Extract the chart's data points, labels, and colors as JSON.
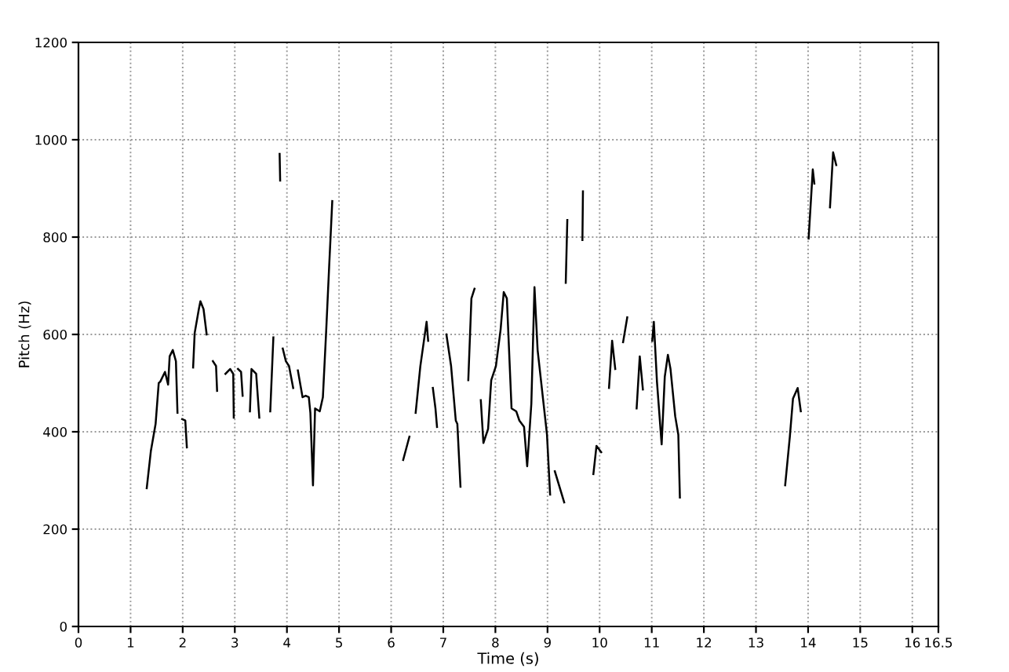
{
  "chart_data": {
    "type": "line",
    "xlabel": "Time (s)",
    "ylabel": "Pitch (Hz)",
    "xlim": [
      0,
      16.5
    ],
    "ylim": [
      0,
      1200
    ],
    "xticks": [
      0,
      1,
      2,
      3,
      4,
      5,
      6,
      7,
      8,
      9,
      10,
      11,
      12,
      13,
      14,
      15,
      16,
      16.5
    ],
    "yticks": [
      0,
      200,
      400,
      600,
      800,
      1000,
      1200
    ],
    "grid": true,
    "marker": "none",
    "line_style": "solid",
    "series": [
      {
        "color": "#000000",
        "x": [
          1.31,
          1.39,
          1.48,
          1.54,
          1.57,
          1.66,
          1.72,
          1.75,
          1.81,
          1.87,
          1.9,
          1.95,
          1.99,
          2.05,
          2.08,
          2.14,
          2.2,
          2.23,
          2.31,
          2.34,
          2.4,
          2.46,
          2.52,
          2.58,
          2.64,
          2.66,
          2.74,
          2.82,
          2.91,
          2.97,
          2.98,
          3.02,
          3.06,
          3.12,
          3.15,
          3.22,
          3.29,
          3.32,
          3.41,
          3.47,
          3.58,
          3.68,
          3.74,
          3.8,
          3.86,
          3.87,
          3.9,
          3.92,
          3.98,
          4.04,
          4.12,
          4.16,
          4.21,
          4.3,
          4.36,
          4.42,
          4.45,
          4.5,
          4.54,
          4.63,
          4.69,
          4.75,
          4.81,
          4.87,
          5.5,
          6.23,
          6.35,
          6.41,
          6.47,
          6.56,
          6.68,
          6.71,
          6.76,
          6.8,
          6.85,
          6.88,
          6.97,
          7.06,
          7.15,
          7.24,
          7.27,
          7.33,
          7.4,
          7.48,
          7.54,
          7.6,
          7.66,
          7.72,
          7.77,
          7.86,
          7.92,
          8.01,
          8.1,
          8.16,
          8.22,
          8.31,
          8.4,
          8.46,
          8.55,
          8.61,
          8.69,
          8.75,
          8.81,
          8.99,
          9.05,
          9.1,
          9.14,
          9.32,
          9.33,
          9.35,
          9.38,
          9.5,
          9.67,
          9.68,
          9.8,
          9.88,
          9.94,
          10.03,
          10.1,
          10.18,
          10.24,
          10.3,
          10.4,
          10.45,
          10.53,
          10.6,
          10.71,
          10.77,
          10.83,
          10.9,
          11.01,
          11.04,
          11.1,
          11.19,
          11.25,
          11.31,
          11.36,
          11.45,
          11.51,
          11.54,
          12.5,
          13.56,
          13.65,
          13.71,
          13.8,
          13.86,
          13.95,
          14.01,
          14.09,
          14.12,
          14.3,
          14.42,
          14.48,
          14.54
        ],
        "values": [
          284,
          361,
          416,
          500,
          503,
          523,
          497,
          555,
          568,
          545,
          439,
          null,
          426,
          423,
          368,
          null,
          532,
          603,
          652,
          668,
          652,
          600,
          null,
          545,
          535,
          484,
          null,
          519,
          529,
          519,
          429,
          null,
          529,
          523,
          474,
          null,
          442,
          529,
          519,
          429,
          null,
          442,
          594,
          null,
          971,
          916,
          null,
          571,
          545,
          535,
          490,
          null,
          526,
          471,
          474,
          471,
          439,
          290,
          448,
          442,
          471,
          600,
          739,
          874,
          null,
          342,
          390,
          null,
          439,
          535,
          626,
          587,
          null,
          490,
          448,
          410,
          null,
          600,
          535,
          423,
          416,
          287,
          null,
          506,
          674,
          694,
          null,
          465,
          377,
          406,
          506,
          535,
          610,
          687,
          674,
          448,
          442,
          423,
          410,
          329,
          458,
          697,
          568,
          394,
          271,
          null,
          319,
          255,
          null,
          706,
          835,
          null,
          794,
          894,
          null,
          313,
          371,
          358,
          null,
          490,
          587,
          529,
          null,
          584,
          635,
          null,
          448,
          555,
          487,
          null,
          587,
          626,
          503,
          374,
          513,
          558,
          529,
          432,
          394,
          265,
          null,
          290,
          390,
          468,
          490,
          442,
          null,
          797,
          939,
          910,
          null,
          861,
          974,
          948
        ]
      }
    ]
  }
}
